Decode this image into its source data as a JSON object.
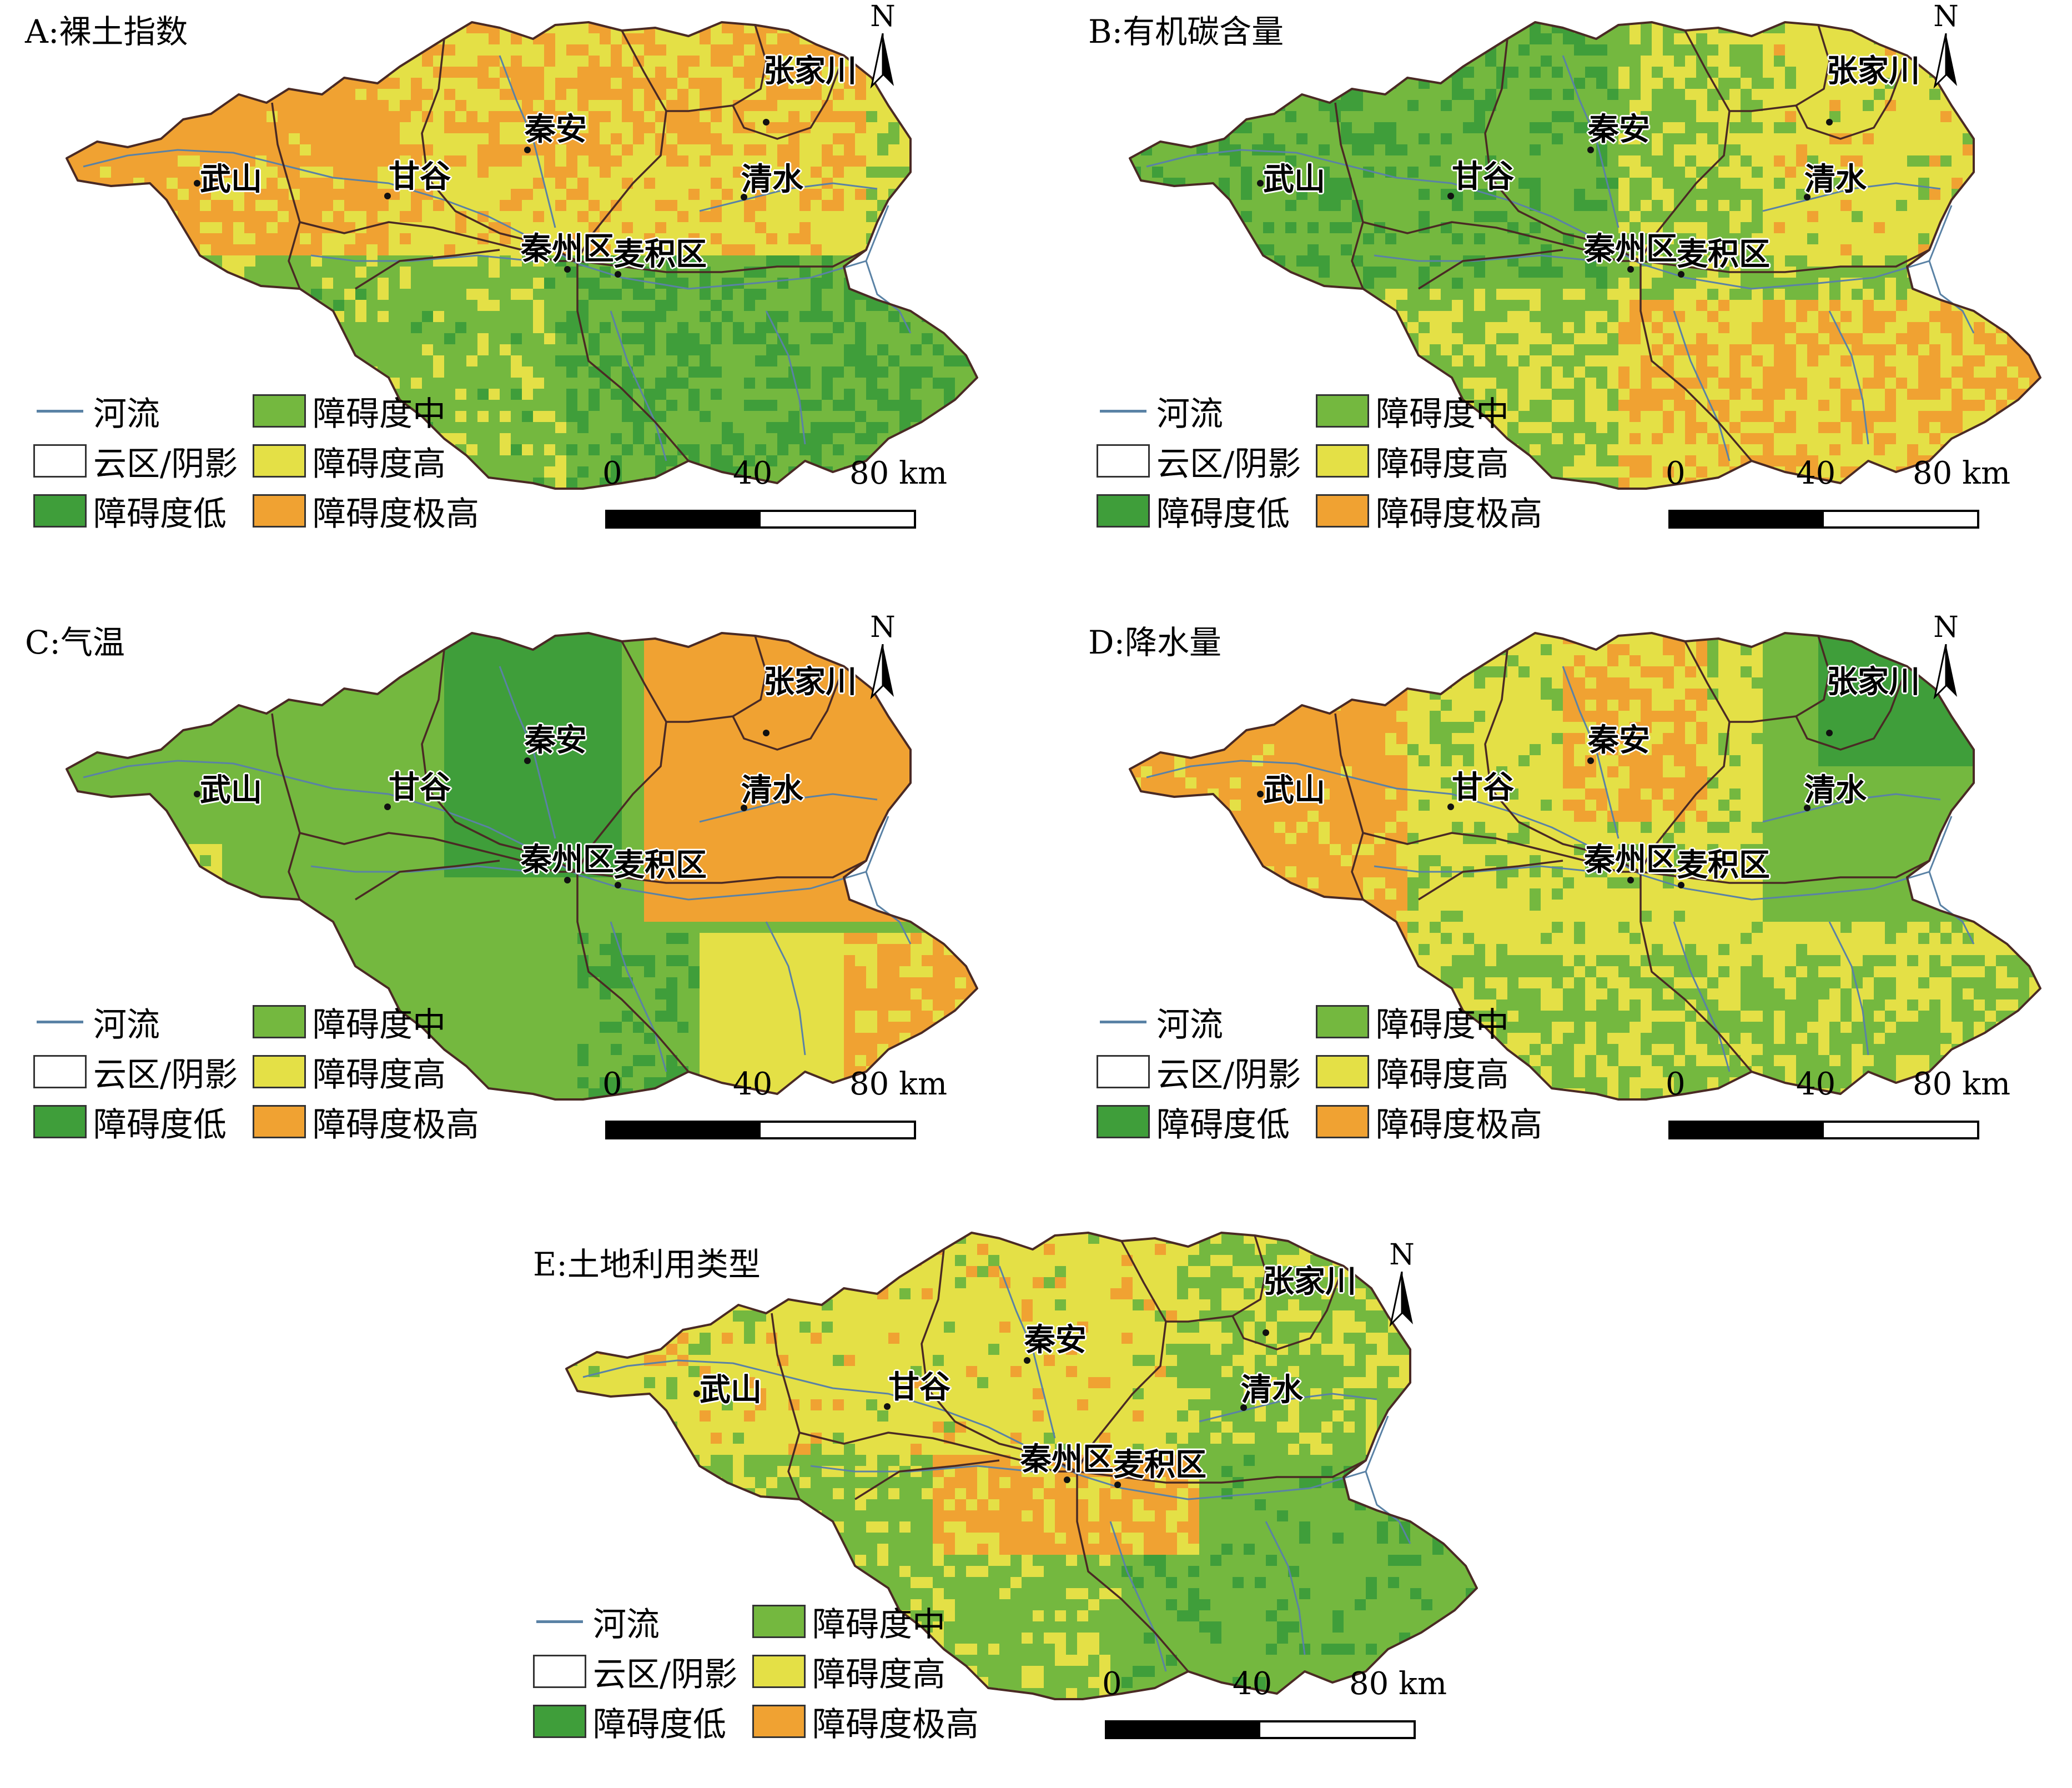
{
  "map_label": {
    "north": "N"
  },
  "legend": {
    "river": "河流",
    "cloud": "云区/阴影",
    "low": "障碍度低",
    "mid": "障碍度中",
    "high": "障碍度高",
    "very_high": "障碍度极高"
  },
  "scale": {
    "s0": "0",
    "s1": "40",
    "s2": "80 km"
  },
  "cities": {
    "wushan": "武山",
    "gangu": "甘谷",
    "qinan": "秦安",
    "zhangjiachuan": "张家川",
    "qingshui": "清水",
    "qinzhou": "秦州区",
    "maiji": "麦积区"
  },
  "panels": {
    "A": {
      "title": "A:裸土指数"
    },
    "B": {
      "title": "B:有机碳含量"
    },
    "C": {
      "title": "C:气温"
    },
    "D": {
      "title": "D:降水量"
    },
    "E": {
      "title": "E:土地利用类型"
    }
  },
  "colors": {
    "low": "#3f9e3a",
    "mid": "#74b83f",
    "high": "#e4e046",
    "very_high": "#f0a232",
    "river": "#5a82a5",
    "boundary": "#4a2a24"
  }
}
